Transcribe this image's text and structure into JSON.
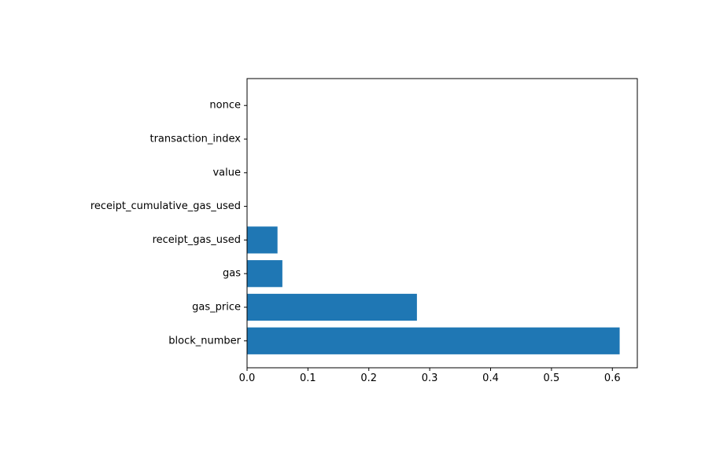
{
  "chart_data": {
    "type": "bar",
    "orientation": "horizontal",
    "categories": [
      "block_number",
      "gas_price",
      "gas",
      "receipt_gas_used",
      "receipt_cumulative_gas_used",
      "value",
      "transaction_index",
      "nonce"
    ],
    "values": [
      0.612,
      0.279,
      0.058,
      0.05,
      0,
      0,
      0,
      0
    ],
    "xlim": [
      0,
      0.641
    ],
    "xticks": [
      0,
      0.1,
      0.2,
      0.3,
      0.4,
      0.5,
      0.6
    ],
    "xtick_labels": [
      "0.0",
      "0.1",
      "0.2",
      "0.3",
      "0.4",
      "0.5",
      "0.6"
    ],
    "title": "",
    "xlabel": "",
    "ylabel": "",
    "grid": false,
    "legend": "none",
    "bar_color": "#1f77b4"
  }
}
